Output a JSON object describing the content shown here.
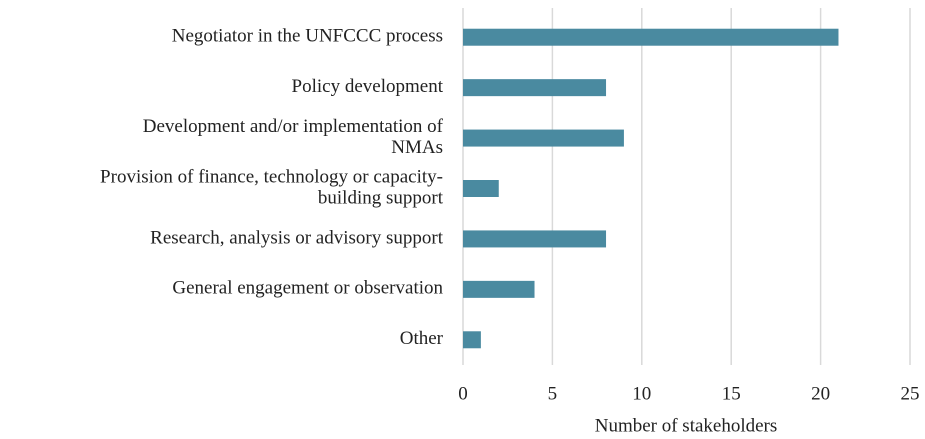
{
  "chart_data": {
    "type": "bar",
    "orientation": "horizontal",
    "categories": [
      "Negotiator in the UNFCCC process",
      "Policy development",
      [
        "Development and/or implementation of",
        "NMAs"
      ],
      [
        "Provision of finance, technology or capacity-",
        "building support"
      ],
      "Research, analysis or advisory support",
      "General engagement or observation",
      "Other"
    ],
    "values": [
      21,
      8,
      9,
      2,
      8,
      4,
      1
    ],
    "color": "#4a8aa0",
    "xlabel": "Number of stakeholders",
    "xlim": [
      0,
      25
    ],
    "xticks": [
      0,
      5,
      10,
      15,
      20,
      25
    ],
    "grid": true
  }
}
